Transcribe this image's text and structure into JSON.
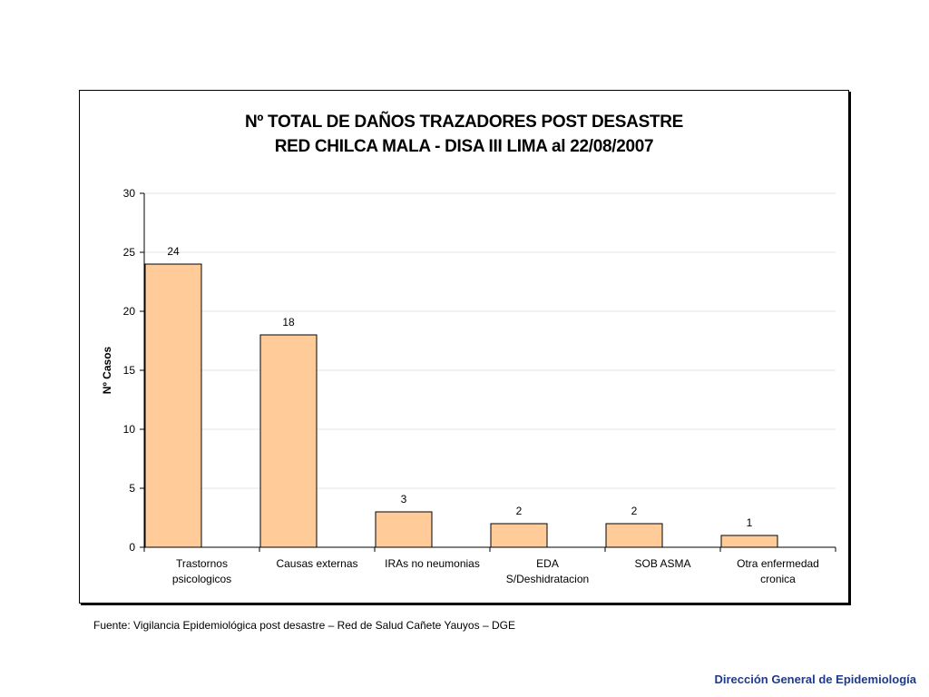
{
  "chart_data": {
    "type": "bar",
    "title_lines": [
      "Nº TOTAL  DE DAÑOS TRAZADORES POST DESASTRE",
      "RED CHILCA MALA - DISA III LIMA al 22/08/2007"
    ],
    "ylabel": "Nº Casos",
    "xlabel": "",
    "ylim": [
      0,
      30
    ],
    "yticks": [
      0,
      5,
      10,
      15,
      20,
      25,
      30
    ],
    "grid": true,
    "legend": "none",
    "categories": [
      [
        "Trastornos",
        "psicologicos"
      ],
      [
        "Causas externas"
      ],
      [
        "IRAs no neumonias"
      ],
      [
        "EDA",
        "S/Deshidratacion"
      ],
      [
        "SOB ASMA"
      ],
      [
        "Otra enfermedad",
        "cronica"
      ]
    ],
    "values": [
      24,
      18,
      3,
      2,
      2,
      1
    ],
    "colors": {
      "bar_fill": "#FFCC99",
      "bar_stroke": "#000000",
      "grid": "#E6E6E6"
    }
  },
  "source_note": "Fuente: Vigilancia Epidemiológica post desastre – Red de Salud Cañete Yauyos  – DGE",
  "footer_brand": "Dirección General de Epidemiología"
}
